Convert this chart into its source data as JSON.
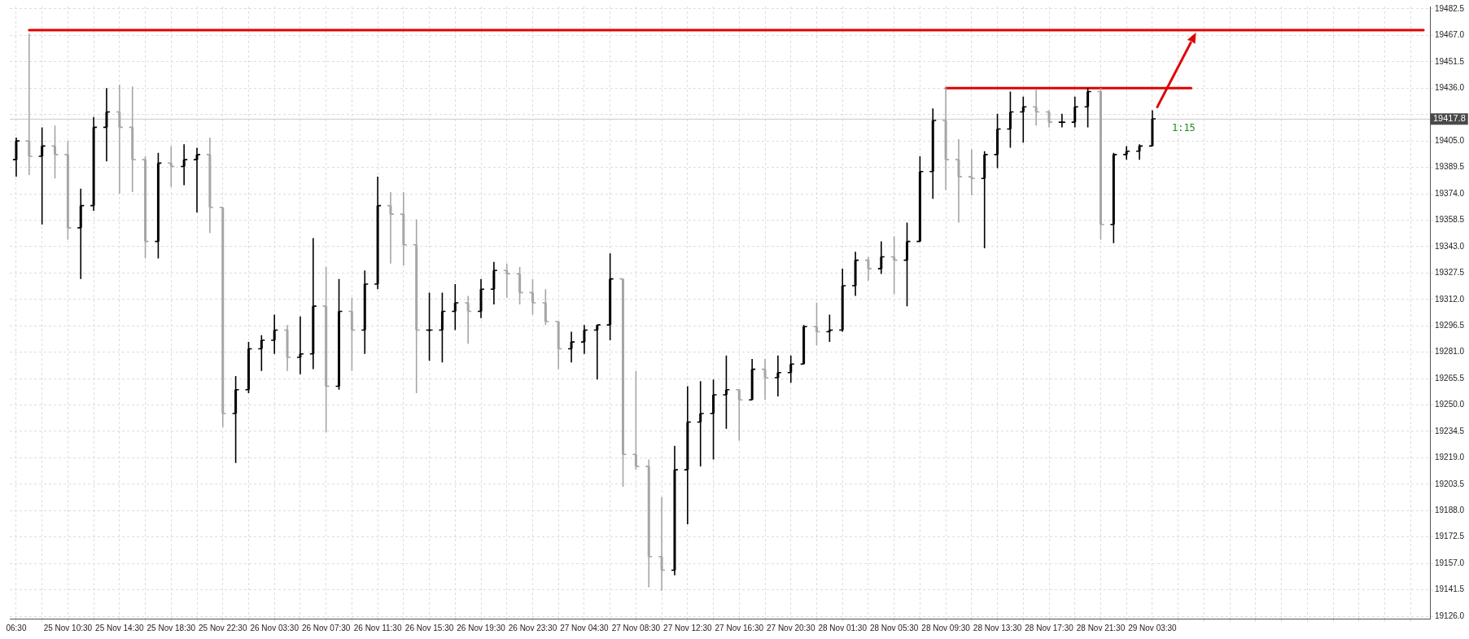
{
  "chart_data": {
    "type": "candlestick",
    "categories": [
      "06:30",
      null,
      null,
      null,
      "25 Nov 10:30",
      null,
      null,
      null,
      "25 Nov 14:30",
      null,
      null,
      null,
      "25 Nov 18:30",
      null,
      null,
      null,
      "25 Nov 22:30",
      null,
      null,
      null,
      "26 Nov 03:30",
      null,
      null,
      null,
      "26 Nov 07:30",
      null,
      null,
      null,
      "26 Nov 11:30",
      null,
      null,
      null,
      "26 Nov 15:30",
      null,
      null,
      null,
      "26 Nov 19:30",
      null,
      null,
      null,
      "26 Nov 23:30",
      null,
      null,
      null,
      "27 Nov 04:30",
      null,
      null,
      null,
      "27 Nov 08:30",
      null,
      null,
      null,
      "27 Nov 12:30",
      null,
      null,
      null,
      "27 Nov 16:30",
      null,
      null,
      null,
      "27 Nov 20:30",
      null,
      null,
      null,
      "28 Nov 01:30",
      null,
      null,
      null,
      "28 Nov 05:30",
      null,
      null,
      null,
      "28 Nov 09:30",
      null,
      null,
      null,
      "28 Nov 13:30",
      null,
      null,
      null,
      "28 Nov 17:30",
      null,
      null,
      null,
      "28 Nov 21:30",
      null,
      null,
      null,
      "29 Nov 03:30",
      null,
      null,
      null,
      null,
      null,
      null,
      null,
      null,
      null,
      null,
      null,
      null,
      null,
      null,
      null,
      null,
      null,
      null,
      null,
      null,
      null
    ],
    "ohlc": [
      [
        19394,
        19407,
        19384,
        19405
      ],
      [
        19405,
        19468,
        19385,
        19396
      ],
      [
        19396,
        19413,
        19356,
        19402
      ],
      [
        19402,
        19414,
        19383,
        19397
      ],
      [
        19397,
        19405,
        19347,
        19354
      ],
      [
        19354,
        19377,
        19324,
        19367
      ],
      [
        19367,
        19419,
        19364,
        19413
      ],
      [
        19413,
        19436,
        19393,
        19422
      ],
      [
        19422,
        19438,
        19374,
        19413
      ],
      [
        19413,
        19437,
        19375,
        19394
      ],
      [
        19394,
        19396,
        19336,
        19346
      ],
      [
        19346,
        19398,
        19336,
        19392
      ],
      [
        19392,
        19402,
        19378,
        19390
      ],
      [
        19390,
        19403,
        19379,
        19394
      ],
      [
        19394,
        19401,
        19363,
        19397
      ],
      [
        19397,
        19407,
        19351,
        19366
      ],
      [
        19366,
        19366,
        19237,
        19245
      ],
      [
        19245,
        19267,
        19216,
        19259
      ],
      [
        19259,
        19287,
        19257,
        19283
      ],
      [
        19283,
        19291,
        19270,
        19288
      ],
      [
        19288,
        19303,
        19280,
        19294
      ],
      [
        19294,
        19297,
        19270,
        19278
      ],
      [
        19278,
        19302,
        19268,
        19280
      ],
      [
        19280,
        19348,
        19271,
        19308
      ],
      [
        19308,
        19331,
        19234,
        19261
      ],
      [
        19261,
        19324,
        19259,
        19305
      ],
      [
        19305,
        19313,
        19270,
        19294
      ],
      [
        19294,
        19329,
        19280,
        19321
      ],
      [
        19321,
        19384,
        19318,
        19367
      ],
      [
        19367,
        19375,
        19333,
        19362
      ],
      [
        19362,
        19375,
        19332,
        19344
      ],
      [
        19344,
        19359,
        19257,
        19294
      ],
      [
        19294,
        19316,
        19276,
        19294
      ],
      [
        19294,
        19316,
        19275,
        19305
      ],
      [
        19305,
        19321,
        19294,
        19310
      ],
      [
        19310,
        19314,
        19286,
        19305
      ],
      [
        19305,
        19324,
        19301,
        19318
      ],
      [
        19318,
        19334,
        19309,
        19329
      ],
      [
        19329,
        19333,
        19313,
        19327
      ],
      [
        19327,
        19331,
        19309,
        19316
      ],
      [
        19316,
        19324,
        19303,
        19310
      ],
      [
        19310,
        19318,
        19297,
        19299
      ],
      [
        19299,
        19299,
        19271,
        19283
      ],
      [
        19283,
        19293,
        19275,
        19287
      ],
      [
        19287,
        19297,
        19280,
        19294
      ],
      [
        19294,
        19297,
        19265,
        19297
      ],
      [
        19297,
        19339,
        19288,
        19324
      ],
      [
        19324,
        19324,
        19202,
        19221
      ],
      [
        19221,
        19270,
        19212,
        19214
      ],
      [
        19214,
        19218,
        19143,
        19161
      ],
      [
        19161,
        19196,
        19141,
        19153
      ],
      [
        19153,
        19226,
        19150,
        19212
      ],
      [
        19212,
        19261,
        19180,
        19240
      ],
      [
        19240,
        19264,
        19214,
        19245
      ],
      [
        19245,
        19265,
        19218,
        19256
      ],
      [
        19256,
        19279,
        19236,
        19259
      ],
      [
        19259,
        19259,
        19229,
        19253
      ],
      [
        19253,
        19277,
        19253,
        19271
      ],
      [
        19271,
        19277,
        19253,
        19266
      ],
      [
        19266,
        19279,
        19255,
        19269
      ],
      [
        19269,
        19279,
        19263,
        19274
      ],
      [
        19274,
        19297,
        19274,
        19296
      ],
      [
        19296,
        19310,
        19285,
        19293
      ],
      [
        19293,
        19303,
        19287,
        19294
      ],
      [
        19294,
        19330,
        19293,
        19320
      ],
      [
        19320,
        19340,
        19314,
        19335
      ],
      [
        19335,
        19337,
        19323,
        19330
      ],
      [
        19330,
        19346,
        19327,
        19337
      ],
      [
        19337,
        19349,
        19315,
        19335
      ],
      [
        19335,
        19357,
        19308,
        19346
      ],
      [
        19346,
        19396,
        19346,
        19387
      ],
      [
        19387,
        19424,
        19371,
        19417
      ],
      [
        19417,
        19437,
        19376,
        19394
      ],
      [
        19394,
        19406,
        19357,
        19384
      ],
      [
        19384,
        19400,
        19373,
        19383
      ],
      [
        19383,
        19399,
        19342,
        19397
      ],
      [
        19397,
        19421,
        19389,
        19412
      ],
      [
        19412,
        19434,
        19401,
        19422
      ],
      [
        19422,
        19431,
        19404,
        19425
      ],
      [
        19425,
        19435,
        19414,
        19422
      ],
      [
        19422,
        19423,
        19413,
        19416
      ],
      [
        19416,
        19421,
        19413,
        19416
      ],
      [
        19416,
        19431,
        19413,
        19425
      ],
      [
        19425,
        19436,
        19413,
        19434
      ],
      [
        19434,
        19436,
        19347,
        19356
      ],
      [
        19356,
        19398,
        19345,
        19397
      ],
      [
        19397,
        19402,
        19394,
        19399
      ],
      [
        19399,
        19403,
        19394,
        19402
      ],
      [
        19402,
        19423,
        19402,
        19418
      ],
      null,
      null,
      null,
      null,
      null,
      null,
      null,
      null,
      null,
      null,
      null,
      null,
      null,
      null,
      null,
      null,
      null,
      null,
      null,
      null,
      null
    ],
    "colors": [
      "#000000",
      "#a6a6a6",
      "#000000",
      "#a6a6a6",
      "#a6a6a6",
      "#000000",
      "#000000",
      "#000000",
      "#a6a6a6",
      "#a6a6a6",
      "#a6a6a6",
      "#000000",
      "#a6a6a6",
      "#000000",
      "#000000",
      "#a6a6a6",
      "#a6a6a6",
      "#000000",
      "#000000",
      "#000000",
      "#000000",
      "#a6a6a6",
      "#000000",
      "#000000",
      "#a6a6a6",
      "#000000",
      "#a6a6a6",
      "#000000",
      "#000000",
      "#a6a6a6",
      "#a6a6a6",
      "#a6a6a6",
      "#000000",
      "#000000",
      "#000000",
      "#a6a6a6",
      "#000000",
      "#000000",
      "#a6a6a6",
      "#a6a6a6",
      "#a6a6a6",
      "#a6a6a6",
      "#a6a6a6",
      "#000000",
      "#000000",
      "#000000",
      "#000000",
      "#a6a6a6",
      "#a6a6a6",
      "#a6a6a6",
      "#a6a6a6",
      "#000000",
      "#000000",
      "#000000",
      "#000000",
      "#000000",
      "#a6a6a6",
      "#000000",
      "#a6a6a6",
      "#000000",
      "#000000",
      "#000000",
      "#a6a6a6",
      "#000000",
      "#000000",
      "#000000",
      "#a6a6a6",
      "#000000",
      "#a6a6a6",
      "#000000",
      "#000000",
      "#000000",
      "#a6a6a6",
      "#a6a6a6",
      "#a6a6a6",
      "#000000",
      "#000000",
      "#000000",
      "#000000",
      "#a6a6a6",
      "#a6a6a6",
      "#000000",
      "#000000",
      "#000000",
      "#a6a6a6",
      "#000000",
      "#000000",
      "#000000",
      "#000000",
      null,
      null,
      null,
      null,
      null,
      null,
      null,
      null,
      null,
      null,
      null,
      null,
      null,
      null,
      null,
      null,
      null,
      null,
      null,
      null,
      null
    ],
    "series": [
      {
        "type": "line",
        "color": "#e00000",
        "values": [
          null,
          19470,
          19470,
          19470,
          19470,
          19470,
          19470,
          19470,
          19470,
          19470,
          19470,
          19470,
          19470,
          19470,
          19470,
          19470,
          19470,
          19470,
          19470,
          19470,
          19470,
          19470,
          19470,
          19470,
          19470,
          19470,
          19470,
          19470,
          19470,
          19470,
          19470,
          19470,
          19470,
          19470,
          19470,
          19470,
          19470,
          19470,
          19470,
          19470,
          19470,
          19470,
          19470,
          19470,
          19470,
          19470,
          19470,
          19470,
          19470,
          19470,
          19470,
          19470,
          19470,
          19470,
          19470,
          19470,
          19470,
          19470,
          19470,
          19470,
          19470,
          19470,
          19470,
          19470,
          19470,
          19470,
          19470,
          19470,
          19470,
          19470,
          19470,
          19470,
          19470,
          19470,
          19470,
          19470,
          19470,
          19470,
          19470,
          19470,
          19470,
          19470,
          19470,
          19470,
          19470,
          19470,
          19470,
          19470,
          19470,
          19470,
          19470,
          19470,
          19470,
          19470,
          19470,
          19470,
          19470,
          19470,
          19470,
          19470,
          19470,
          19470,
          19470,
          19470,
          19470,
          19470,
          19470,
          19470,
          19470,
          19470
        ]
      },
      {
        "type": "line",
        "color": "#e00000",
        "values": [
          null,
          null,
          null,
          null,
          null,
          null,
          null,
          null,
          null,
          null,
          null,
          null,
          null,
          null,
          null,
          null,
          null,
          null,
          null,
          null,
          null,
          null,
          null,
          null,
          null,
          null,
          null,
          null,
          null,
          null,
          null,
          null,
          null,
          null,
          null,
          null,
          null,
          null,
          null,
          null,
          null,
          null,
          null,
          null,
          null,
          null,
          null,
          null,
          null,
          null,
          null,
          null,
          null,
          null,
          null,
          null,
          null,
          null,
          null,
          null,
          null,
          null,
          null,
          null,
          null,
          null,
          null,
          null,
          null,
          null,
          null,
          null,
          19436,
          19436,
          19436,
          19436,
          19436,
          19436,
          19436,
          19436,
          19436,
          19436,
          19436,
          19436,
          19436,
          19436,
          19436,
          19436,
          19436,
          19436,
          19436,
          19436,
          null,
          null,
          null,
          null,
          null,
          null,
          null,
          null,
          null,
          null,
          null,
          null,
          null,
          null,
          null,
          null,
          null,
          null
        ]
      }
    ],
    "ylim": [
      19124.6,
      19483.9
    ],
    "yticks": [
      {
        "value": 19126,
        "label": "19126.0"
      },
      {
        "value": 19141.5,
        "label": "19141.5"
      },
      {
        "value": 19157,
        "label": "19157.0"
      },
      {
        "value": 19172.5,
        "label": "19172.5"
      },
      {
        "value": 19188,
        "label": "19188.0"
      },
      {
        "value": 19203.5,
        "label": "19203.5"
      },
      {
        "value": 19219,
        "label": "19219.0"
      },
      {
        "value": 19234.5,
        "label": "19234.5"
      },
      {
        "value": 19250,
        "label": "19250.0"
      },
      {
        "value": 19265.5,
        "label": "19265.5"
      },
      {
        "value": 19281,
        "label": "19281.0"
      },
      {
        "value": 19296.5,
        "label": "19296.5"
      },
      {
        "value": 19312,
        "label": "19312.0"
      },
      {
        "value": 19327.5,
        "label": "19327.5"
      },
      {
        "value": 19343,
        "label": "19343.0"
      },
      {
        "value": 19358.5,
        "label": "19358.5"
      },
      {
        "value": 19374,
        "label": "19374.0"
      },
      {
        "value": 19389.5,
        "label": "19389.5"
      },
      {
        "value": 19405,
        "label": "19405.0"
      },
      {
        "value": 19420.5,
        "label": null
      },
      {
        "value": 19436,
        "label": "19436.0"
      },
      {
        "value": 19451.5,
        "label": "19451.5"
      },
      {
        "value": 19467,
        "label": "19467.0"
      },
      {
        "value": 19482.5,
        "label": "19482.5"
      }
    ],
    "ref_lines": [
      {
        "axis": "y",
        "value": 19417.8,
        "label": "19417.8",
        "color": "#c8c8c8"
      }
    ],
    "annotations": [
      "1:15"
    ],
    "grid": true
  }
}
